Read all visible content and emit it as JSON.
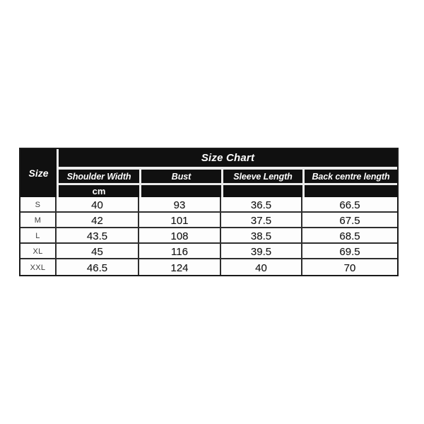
{
  "chart_data": {
    "type": "table",
    "title": "Size Chart",
    "corner_header": "Size",
    "unit_label": "cm",
    "columns": [
      "Shoulder Width",
      "Bust",
      "Sleeve Length",
      "Back centre length"
    ],
    "rows": [
      {
        "size": "S",
        "values": [
          "40",
          "93",
          "36.5",
          "66.5"
        ]
      },
      {
        "size": "M",
        "values": [
          "42",
          "101",
          "37.5",
          "67.5"
        ]
      },
      {
        "size": "L",
        "values": [
          "43.5",
          "108",
          "38.5",
          "68.5"
        ]
      },
      {
        "size": "XL",
        "values": [
          "45",
          "116",
          "39.5",
          "69.5"
        ]
      },
      {
        "size": "XXL",
        "values": [
          "46.5",
          "124",
          "40",
          "70"
        ]
      }
    ],
    "layout": {
      "legend": "none",
      "grid": "on",
      "header_position": "top"
    },
    "colors": {
      "header_bg": "#101010",
      "header_text": "#ffffff",
      "body_bg": "#fdfdfd",
      "body_text": "#161616",
      "line": "#2e2e2e",
      "page_bg": "#ffffff"
    }
  }
}
